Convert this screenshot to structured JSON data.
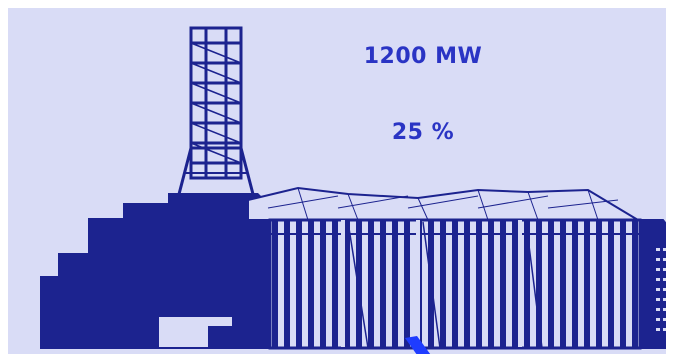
{
  "readouts": {
    "power_output": "1200 MW",
    "power_percent": "25 %"
  },
  "colors": {
    "background": "#d9dcf6",
    "ink": "#1c238f",
    "text": "#2a34c4",
    "needle": "#1f3cff"
  },
  "icons": {
    "illustration": "nuclear-power-plant-icon",
    "indicator": "needle-indicator"
  }
}
